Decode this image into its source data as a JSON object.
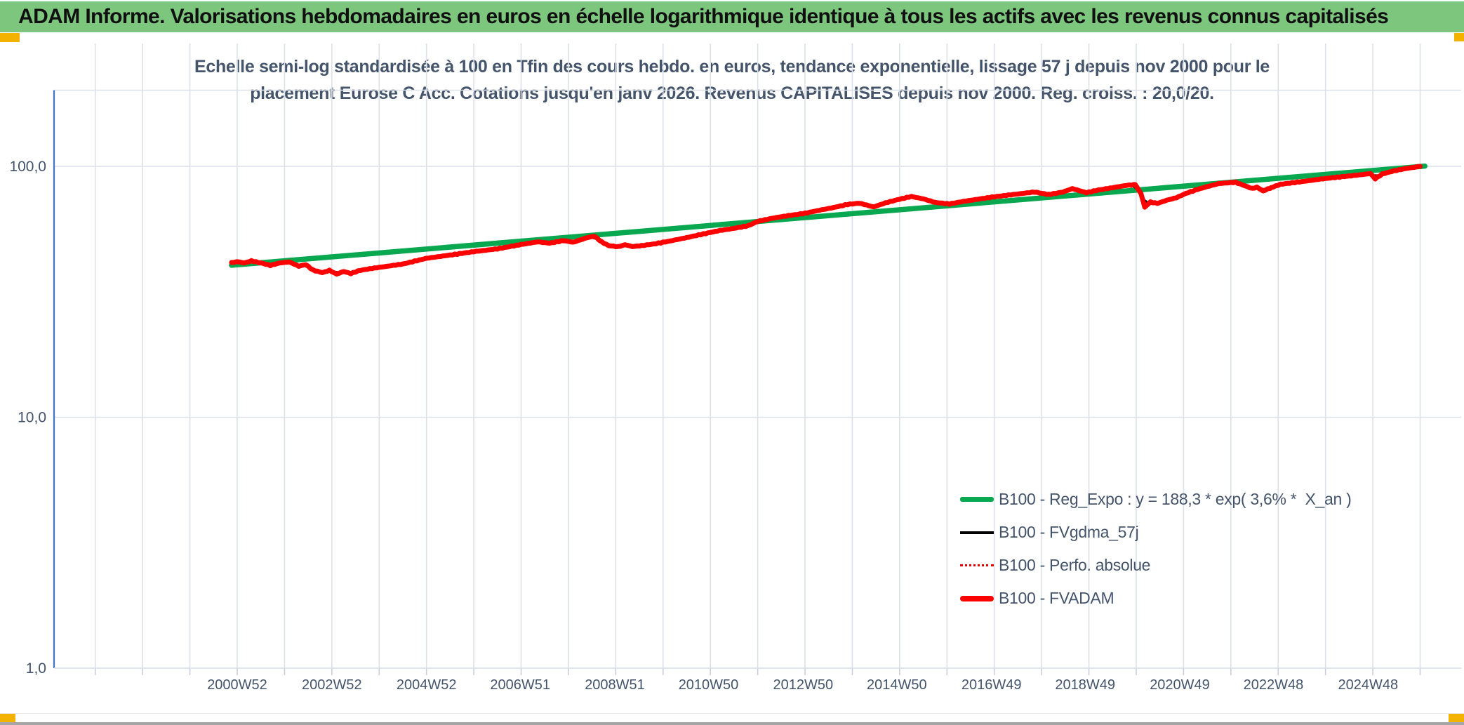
{
  "header": {
    "title": "ADAM Informe. Valorisations hebdomadaires en euros en échelle logarithmique identique à tous les actifs avec les revenus connus capitalisés",
    "bar_color": "#7dc67e",
    "corner_marker_color": "#f3b200"
  },
  "chart_data": {
    "type": "line",
    "title_lines": [
      "Echelle semi-log standardisée à 100 en Tfin des cours hebdo. en euros, tendance exponentielle, lissage 57 j depuis nov 2000 pour le",
      "placement Eurose C Acc. Cotations jusqu'en janv 2026. Revenus CAPITALISES depuis nov 2000. Reg. croiss. : 20,0/20."
    ],
    "y_axis": {
      "scale": "log",
      "range": [
        1,
        200
      ],
      "ticks": [
        {
          "label": "100,0",
          "value": 100
        },
        {
          "label": "10,0",
          "value": 10
        },
        {
          "label": "1,0",
          "value": 1
        }
      ]
    },
    "x_axis": {
      "unit": "ISO week",
      "grid_year_start": 1998,
      "grid_year_end": 2026,
      "ticks": [
        {
          "label": "2000W52",
          "t": 2001.0
        },
        {
          "label": "2002W52",
          "t": 2003.0
        },
        {
          "label": "2004W52",
          "t": 2005.0
        },
        {
          "label": "2006W51",
          "t": 2006.98
        },
        {
          "label": "2008W51",
          "t": 2008.98
        },
        {
          "label": "2010W50",
          "t": 2010.96
        },
        {
          "label": "2012W50",
          "t": 2012.96
        },
        {
          "label": "2014W50",
          "t": 2014.94
        },
        {
          "label": "2016W49",
          "t": 2016.94
        },
        {
          "label": "2018W49",
          "t": 2018.92
        },
        {
          "label": "2020W49",
          "t": 2020.92
        },
        {
          "label": "2022W48",
          "t": 2022.9
        },
        {
          "label": "2024W48",
          "t": 2024.9
        }
      ]
    },
    "colors": {
      "grid": "#dce1e9",
      "tick": "#c9cfd8",
      "y_axis_line": "#4472c4",
      "text": "#44546a",
      "green": "#07a84f",
      "red": "#ff0000",
      "dotted_red": "#e00000",
      "black": "#000000"
    },
    "legend": {
      "position": "inside lower right",
      "entries": [
        {
          "label": "B100 - Reg_Expo : y = 188,3 * exp( 3,6% *  X_an )",
          "style": "thick-green"
        },
        {
          "label": "B100 - FVgdma_57j",
          "style": "thin-black"
        },
        {
          "label": "B100 - Perfo. absolue",
          "style": "dotted-red"
        },
        {
          "label": "B100 - FVADAM",
          "style": "thick-red"
        }
      ]
    },
    "series": [
      {
        "name": "B100 - Reg_Expo",
        "kind": "regression",
        "formula": "y = 188,3 * exp( 3,6% *  X_an )",
        "points": [
          [
            2000.88,
            40.35
          ],
          [
            2026.1,
            100.2
          ]
        ]
      },
      {
        "name": "B100 - FVgdma_57j",
        "kind": "smoothed-57d",
        "derived_from": "B100 - FVADAM"
      },
      {
        "name": "B100 - Perfo. absolue",
        "kind": "dotted-overlay",
        "derived_from": "B100 - FVADAM"
      },
      {
        "name": "B100 - FVADAM",
        "kind": "weekly",
        "points": [
          [
            2000.88,
            41.3
          ],
          [
            2001.0,
            41.7
          ],
          [
            2001.15,
            41.2
          ],
          [
            2001.3,
            42.0
          ],
          [
            2001.5,
            41.2
          ],
          [
            2001.7,
            40.3
          ],
          [
            2001.9,
            41.2
          ],
          [
            2002.1,
            41.6
          ],
          [
            2002.3,
            40.0
          ],
          [
            2002.45,
            40.6
          ],
          [
            2002.6,
            38.6
          ],
          [
            2002.8,
            37.7
          ],
          [
            2002.95,
            38.5
          ],
          [
            2003.1,
            37.2
          ],
          [
            2003.25,
            38.1
          ],
          [
            2003.4,
            37.4
          ],
          [
            2003.6,
            38.5
          ],
          [
            2003.85,
            39.2
          ],
          [
            2004.1,
            39.8
          ],
          [
            2004.5,
            40.8
          ],
          [
            2005.0,
            43.0
          ],
          [
            2005.5,
            44.3
          ],
          [
            2006.0,
            45.7
          ],
          [
            2006.5,
            46.9
          ],
          [
            2007.0,
            48.8
          ],
          [
            2007.35,
            50.0
          ],
          [
            2007.6,
            49.4
          ],
          [
            2007.9,
            50.6
          ],
          [
            2008.1,
            49.8
          ],
          [
            2008.4,
            52.0
          ],
          [
            2008.55,
            52.7
          ],
          [
            2008.7,
            50.0
          ],
          [
            2008.85,
            48.3
          ],
          [
            2009.05,
            47.8
          ],
          [
            2009.2,
            48.7
          ],
          [
            2009.35,
            47.9
          ],
          [
            2009.55,
            48.3
          ],
          [
            2009.8,
            49.0
          ],
          [
            2010.1,
            50.2
          ],
          [
            2010.5,
            52.0
          ],
          [
            2010.9,
            54.0
          ],
          [
            2011.2,
            55.5
          ],
          [
            2011.5,
            56.6
          ],
          [
            2011.8,
            58.0
          ],
          [
            2012.0,
            60.3
          ],
          [
            2012.25,
            61.8
          ],
          [
            2012.5,
            63.0
          ],
          [
            2012.75,
            64.0
          ],
          [
            2013.0,
            65.0
          ],
          [
            2013.3,
            66.8
          ],
          [
            2013.6,
            68.5
          ],
          [
            2013.9,
            70.5
          ],
          [
            2014.15,
            71.3
          ],
          [
            2014.45,
            68.9
          ],
          [
            2014.7,
            71.5
          ],
          [
            2015.0,
            74.0
          ],
          [
            2015.25,
            75.8
          ],
          [
            2015.5,
            74.2
          ],
          [
            2015.75,
            71.8
          ],
          [
            2016.05,
            70.8
          ],
          [
            2016.35,
            72.5
          ],
          [
            2016.7,
            74.2
          ],
          [
            2017.0,
            75.6
          ],
          [
            2017.4,
            77.2
          ],
          [
            2017.85,
            79.0
          ],
          [
            2018.15,
            77.2
          ],
          [
            2018.45,
            79.0
          ],
          [
            2018.65,
            81.5
          ],
          [
            2018.95,
            78.5
          ],
          [
            2019.2,
            80.5
          ],
          [
            2019.5,
            82.2
          ],
          [
            2019.8,
            84.0
          ],
          [
            2019.98,
            84.5
          ],
          [
            2020.1,
            78.0
          ],
          [
            2020.18,
            68.8
          ],
          [
            2020.3,
            72.0
          ],
          [
            2020.45,
            71.2
          ],
          [
            2020.65,
            73.3
          ],
          [
            2020.85,
            75.0
          ],
          [
            2021.05,
            78.0
          ],
          [
            2021.3,
            81.0
          ],
          [
            2021.55,
            83.5
          ],
          [
            2021.75,
            85.4
          ],
          [
            2021.95,
            86.0
          ],
          [
            2022.1,
            86.4
          ],
          [
            2022.3,
            83.6
          ],
          [
            2022.45,
            81.6
          ],
          [
            2022.55,
            82.6
          ],
          [
            2022.68,
            79.8
          ],
          [
            2022.85,
            82.2
          ],
          [
            2023.05,
            84.8
          ],
          [
            2023.3,
            86.0
          ],
          [
            2023.6,
            87.4
          ],
          [
            2023.9,
            89.0
          ],
          [
            2024.2,
            90.3
          ],
          [
            2024.5,
            91.5
          ],
          [
            2024.75,
            92.6
          ],
          [
            2024.95,
            93.6
          ],
          [
            2025.05,
            89.2
          ],
          [
            2025.2,
            93.2
          ],
          [
            2025.45,
            96.0
          ],
          [
            2025.7,
            98.0
          ],
          [
            2026.0,
            100.0
          ]
        ]
      }
    ]
  }
}
